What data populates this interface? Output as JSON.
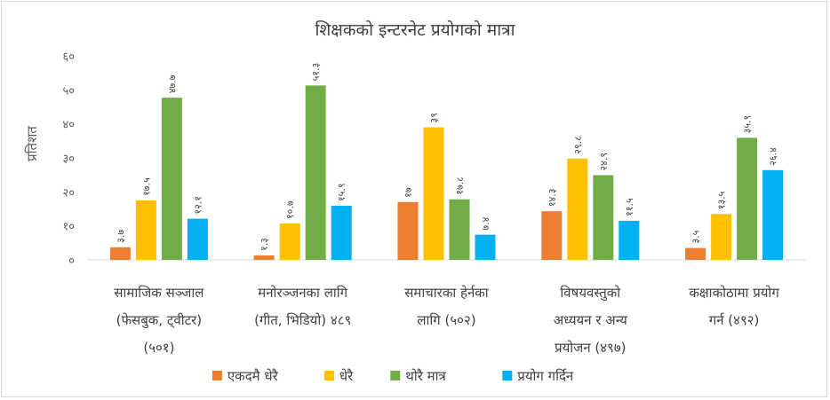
{
  "chart_data": {
    "type": "bar",
    "title": "शिक्षकको इन्टरनेट प्रयोगको मात्रा",
    "ylabel": "प्रतिशत",
    "xlabel": "",
    "ylim": [
      0,
      60
    ],
    "yticks": [
      0,
      10,
      20,
      30,
      40,
      50,
      60
    ],
    "ytick_labels": [
      "०",
      "१०",
      "२०",
      "३०",
      "४०",
      "५०",
      "६०"
    ],
    "grid": false,
    "legend_position": "bottom",
    "categories": [
      [
        "सामाजिक सञ्जाल",
        "(फेसबुक, ट्वीटर)",
        "(५०१)"
      ],
      [
        "मनोरञ्जनका लागि",
        "(गीत, भिडियो) ४८९"
      ],
      [
        "समाचारका हेर्नका",
        "लागि (५०२)"
      ],
      [
        "विषयवस्तुको",
        "अध्ययन र अन्य",
        "प्रयोजन (४९७)"
      ],
      [
        "कक्षाकोठामा प्रयोग",
        "गर्न (४९२)"
      ]
    ],
    "series": [
      {
        "name": "एकदमै धेरै",
        "color": "#ED7D31",
        "values": [
          3.7,
          1.3,
          17,
          14.3,
          3.5
        ],
        "labels": [
          "३.७",
          "१.३",
          "१७",
          "१४.३",
          "३.५"
        ]
      },
      {
        "name": "धेरै",
        "color": "#FFC000",
        "values": [
          17.5,
          10.7,
          39,
          29.8,
          13.5
        ],
        "labels": [
          "१७.५",
          "१०.७",
          "३९",
          "२९.८",
          "१३.५"
        ]
      },
      {
        "name": "थोरै मात्र",
        "color": "#70AD47",
        "values": [
          47.7,
          51.3,
          17.8,
          24.9,
          35.9
        ],
        "labels": [
          "४७.७",
          "५१.३",
          "१७.८",
          "२४.९",
          "३५.९"
        ]
      },
      {
        "name": "प्रयोग गर्दिन",
        "color": "#00B0F0",
        "values": [
          12.1,
          15.9,
          7.4,
          11.5,
          26.4
        ],
        "labels": [
          "१२.१",
          "१५.९",
          "७.४",
          "११.५",
          "२६.४"
        ]
      }
    ]
  }
}
